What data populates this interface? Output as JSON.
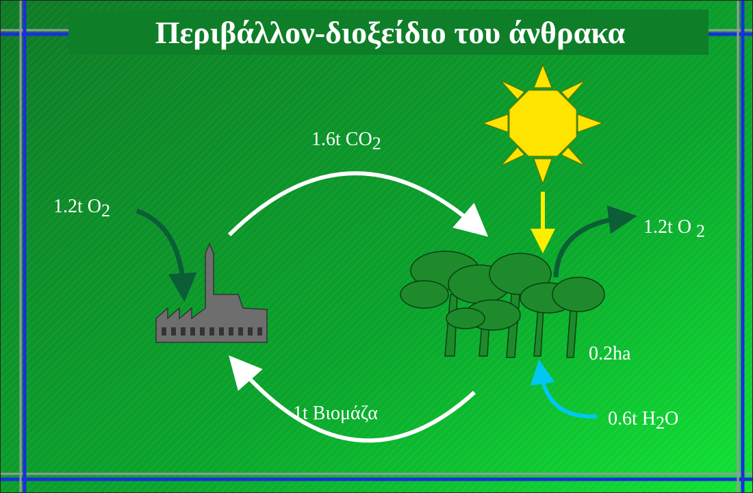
{
  "title": "Περιβάλλον-διοξείδιο του άνθρακα",
  "labels": {
    "input_o2": [
      {
        "t": "1.2t O"
      },
      {
        "t": "2",
        "sub": true
      }
    ],
    "co2": [
      {
        "t": "1.6t CO"
      },
      {
        "t": "2",
        "sub": true
      }
    ],
    "output_o2": [
      {
        "t": "1.2t O "
      },
      {
        "t": "2",
        "sub": true
      }
    ],
    "area": [
      {
        "t": "0.2ha"
      }
    ],
    "biomass": [
      {
        "t": "1t Βιομάζα"
      }
    ],
    "water": [
      {
        "t": "0.6t H"
      },
      {
        "t": "2",
        "sub": true
      },
      {
        "t": "O"
      }
    ]
  }
}
